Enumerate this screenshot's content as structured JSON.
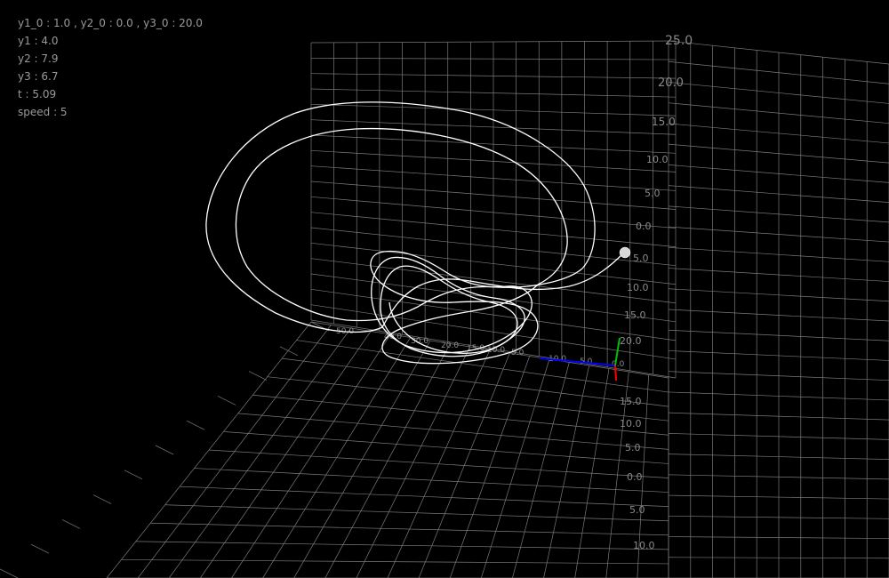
{
  "hud": {
    "initial_conditions": "y1_0 : 1.0 , y2_0 : 0.0 , y3_0 : 20.0",
    "y1": "y1 : 4.0",
    "y2": "y2 : 7.9",
    "y3": "y3 : 6.7",
    "t": "t : 5.09",
    "speed": "speed : 5"
  },
  "colors": {
    "background": "#000000",
    "grid": "#8c8c8c",
    "trajectory": "#ffffff",
    "axis_x": "#0000ff",
    "axis_y": "#00c000",
    "axis_z": "#ff0000"
  },
  "scene": {
    "vertical_plane_labels": [
      "25.0",
      "20.0",
      "15.0",
      "10.0",
      "5.0",
      "0.0",
      "5.0",
      "10.0",
      "15.0"
    ],
    "side_plane_labels": [
      "20.0",
      "15.0",
      "10.0",
      "5.0",
      "0.0",
      "5.0",
      "10.0"
    ],
    "floor_labels": [
      "50.0",
      "40.0",
      "30.0",
      "20.0",
      "15.0",
      "10.0",
      "5.0"
    ],
    "axis_labels": [
      "10.0",
      "5.0",
      "0.0"
    ]
  }
}
